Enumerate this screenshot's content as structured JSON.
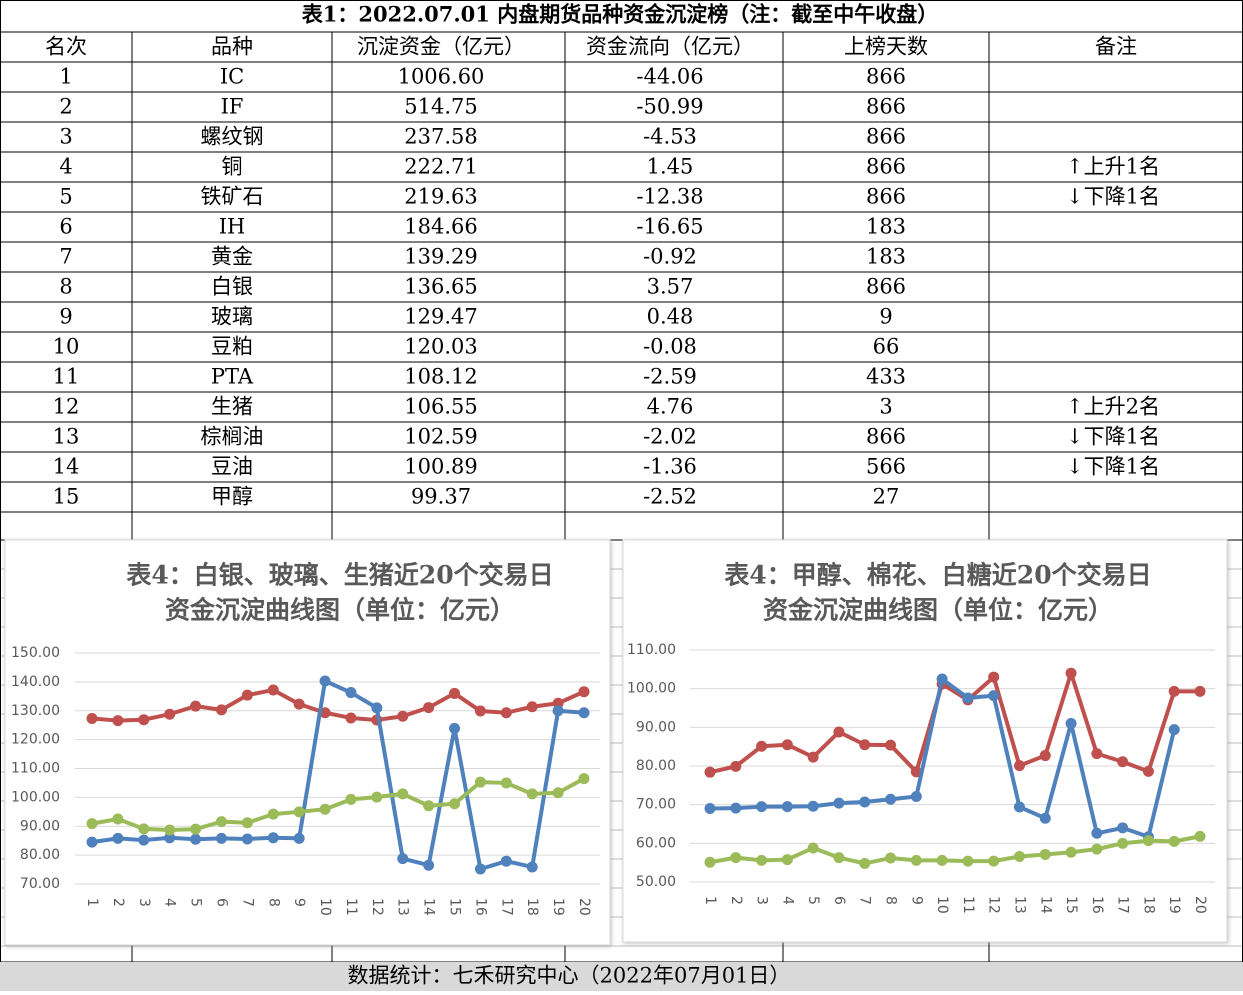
{
  "table": {
    "title": "表1：2022.07.01 内盘期货品种资金沉淀榜（注：截至中午收盘）",
    "header": [
      "名次",
      "品种",
      "沉淀资金（亿元）",
      "资金流向（亿元）",
      "上榜天数",
      "备注"
    ],
    "rows": [
      [
        "1",
        "IC",
        "1006.60",
        "-44.06",
        "866",
        ""
      ],
      [
        "2",
        "IF",
        "514.75",
        "-50.99",
        "866",
        ""
      ],
      [
        "3",
        "螺纹钢",
        "237.58",
        "-4.53",
        "866",
        ""
      ],
      [
        "4",
        "铜",
        "222.71",
        "1.45",
        "866",
        "↑上升1名"
      ],
      [
        "5",
        "铁矿石",
        "219.63",
        "-12.38",
        "866",
        "↓下降1名"
      ],
      [
        "6",
        "IH",
        "184.66",
        "-16.65",
        "183",
        ""
      ],
      [
        "7",
        "黄金",
        "139.29",
        "-0.92",
        "183",
        ""
      ],
      [
        "8",
        "白银",
        "136.65",
        "3.57",
        "866",
        ""
      ],
      [
        "9",
        "玻璃",
        "129.47",
        "0.48",
        "9",
        ""
      ],
      [
        "10",
        "豆粕",
        "120.03",
        "-0.08",
        "66",
        ""
      ],
      [
        "11",
        "PTA",
        "108.12",
        "-2.59",
        "433",
        ""
      ],
      [
        "12",
        "生猪",
        "106.55",
        "4.76",
        "3",
        "↑上升2名"
      ],
      [
        "13",
        "棕榈油",
        "102.59",
        "-2.02",
        "866",
        "↓下降1名"
      ],
      [
        "14",
        "豆油",
        "100.89",
        "-1.36",
        "566",
        "↓下降1名"
      ],
      [
        "15",
        "甲醇",
        "99.37",
        "-2.52",
        "27",
        ""
      ]
    ]
  },
  "footer": "数据统计：七禾研究中心（2022年07月01日）",
  "chart_data": [
    {
      "type": "line",
      "title": "表4：白银、玻璃、生猪近20个交易日",
      "subtitle": "资金沉淀曲线图（单位：亿元）",
      "categories": [
        "1",
        "2",
        "3",
        "4",
        "5",
        "6",
        "7",
        "8",
        "9",
        "10",
        "11",
        "12",
        "13",
        "14",
        "15",
        "16",
        "17",
        "18",
        "19",
        "20"
      ],
      "ylim": [
        70,
        150
      ],
      "yticks": [
        {
          "value": 70,
          "label": "70.00"
        },
        {
          "value": 80,
          "label": "80.00"
        },
        {
          "value": 90,
          "label": "90.00"
        },
        {
          "value": 100,
          "label": "100.00"
        },
        {
          "value": 110,
          "label": "110.00"
        },
        {
          "value": 120,
          "label": "120.00"
        },
        {
          "value": 130,
          "label": "130.00"
        },
        {
          "value": 140,
          "label": "140.00"
        },
        {
          "value": 150,
          "label": "150.00"
        }
      ],
      "grid": true,
      "series": [
        {
          "color": "#c0504d",
          "values": [
            127.3,
            126.6,
            126.9,
            128.8,
            131.6,
            130.3,
            135.4,
            137.2,
            132.3,
            129.3,
            127.5,
            126.8,
            128.1,
            131.1,
            136.0,
            129.9,
            129.3,
            131.4,
            132.6,
            136.6
          ]
        },
        {
          "color": "#4f81bd",
          "values": [
            84.5,
            85.8,
            85.2,
            86.0,
            85.5,
            85.8,
            85.6,
            86.0,
            85.8,
            140.3,
            136.3,
            131.0,
            78.8,
            76.5,
            123.9,
            75.2,
            77.9,
            75.9,
            130.0,
            129.3
          ]
        },
        {
          "color": "#9bbb59",
          "values": [
            90.9,
            92.5,
            89.1,
            88.7,
            89.0,
            91.6,
            91.2,
            94.2,
            95.0,
            95.9,
            99.3,
            100.1,
            101.2,
            97.1,
            97.8,
            105.3,
            105.0,
            101.2,
            101.6,
            106.5
          ]
        }
      ]
    },
    {
      "type": "line",
      "title": "表4：甲醇、棉花、白糖近20个交易日",
      "subtitle": "资金沉淀曲线图（单位：亿元）",
      "categories": [
        "1",
        "2",
        "3",
        "4",
        "5",
        "6",
        "7",
        "8",
        "9",
        "10",
        "11",
        "12",
        "13",
        "14",
        "15",
        "16",
        "17",
        "18",
        "19",
        "20"
      ],
      "ylim": [
        50,
        110
      ],
      "yticks": [
        {
          "value": 50,
          "label": "50.00"
        },
        {
          "value": 60,
          "label": "60.00"
        },
        {
          "value": 70,
          "label": "70.00"
        },
        {
          "value": 80,
          "label": "80.00"
        },
        {
          "value": 90,
          "label": "90.00"
        },
        {
          "value": 100,
          "label": "100.00"
        },
        {
          "value": 110,
          "label": "110.00"
        }
      ],
      "grid": true,
      "series": [
        {
          "color": "#c0504d",
          "values": [
            78.4,
            79.9,
            85.1,
            85.5,
            82.3,
            88.8,
            85.5,
            85.4,
            78.5,
            101.2,
            97.1,
            103.0,
            80.1,
            82.7,
            104.0,
            83.2,
            81.1,
            78.6,
            99.3,
            99.3
          ]
        },
        {
          "color": "#4f81bd",
          "values": [
            69.0,
            69.1,
            69.5,
            69.5,
            69.6,
            70.4,
            70.7,
            71.4,
            72.1,
            102.5,
            97.6,
            98.2,
            69.4,
            66.5,
            91.0,
            62.6,
            64.0,
            61.7,
            89.4,
            null
          ]
        },
        {
          "color": "#9bbb59",
          "values": [
            55.1,
            56.3,
            55.6,
            55.8,
            58.8,
            56.3,
            54.8,
            56.2,
            55.6,
            55.6,
            55.4,
            55.4,
            56.6,
            57.1,
            57.7,
            58.5,
            60.0,
            60.7,
            60.5,
            61.8
          ]
        }
      ]
    }
  ]
}
